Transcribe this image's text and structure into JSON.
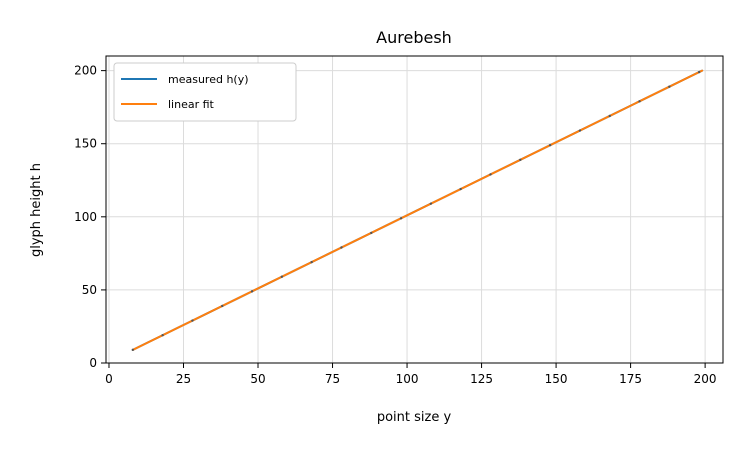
{
  "chart_data": {
    "type": "line",
    "title": "Aurebesh",
    "xlabel": "point size y",
    "ylabel": "glyph height h",
    "xlim": [
      -1,
      206
    ],
    "ylim": [
      0,
      210
    ],
    "xticks": [
      0,
      25,
      50,
      75,
      100,
      125,
      150,
      175,
      200
    ],
    "yticks": [
      0,
      50,
      100,
      150,
      200
    ],
    "xtick_labels": [
      "0",
      "25",
      "50",
      "75",
      "100",
      "125",
      "150",
      "175",
      "200"
    ],
    "ytick_labels": [
      "0",
      "50",
      "100",
      "150",
      "200"
    ],
    "grid": true,
    "legend_position": "upper-left",
    "series": [
      {
        "name": "measured h(y)",
        "color": "#1f77b4",
        "style": "line",
        "x": [
          8,
          13,
          18,
          23,
          28,
          33,
          38,
          43,
          48,
          53,
          58,
          63,
          68,
          73,
          78,
          83,
          88,
          93,
          98,
          103,
          108,
          113,
          118,
          123,
          128,
          133,
          138,
          143,
          148,
          153,
          158,
          163,
          168,
          173,
          178,
          183,
          188,
          193,
          198,
          199
        ],
        "y": [
          9,
          14,
          19,
          24,
          29,
          34,
          39,
          44,
          49,
          54,
          59,
          64,
          69,
          74,
          79,
          84,
          89,
          94,
          99,
          104,
          109,
          114,
          119,
          124,
          129,
          134,
          139,
          144,
          149,
          154,
          159,
          164,
          169,
          174,
          179,
          184,
          189,
          194,
          199,
          200
        ]
      },
      {
        "name": "linear fit",
        "color": "#ff7f0e",
        "style": "line",
        "x": [
          8,
          199
        ],
        "y": [
          9,
          200
        ]
      }
    ],
    "colors": {
      "measured": "#1f77b4",
      "fit": "#ff7f0e",
      "grid": "#dcdcdc",
      "axis": "#000000"
    }
  }
}
